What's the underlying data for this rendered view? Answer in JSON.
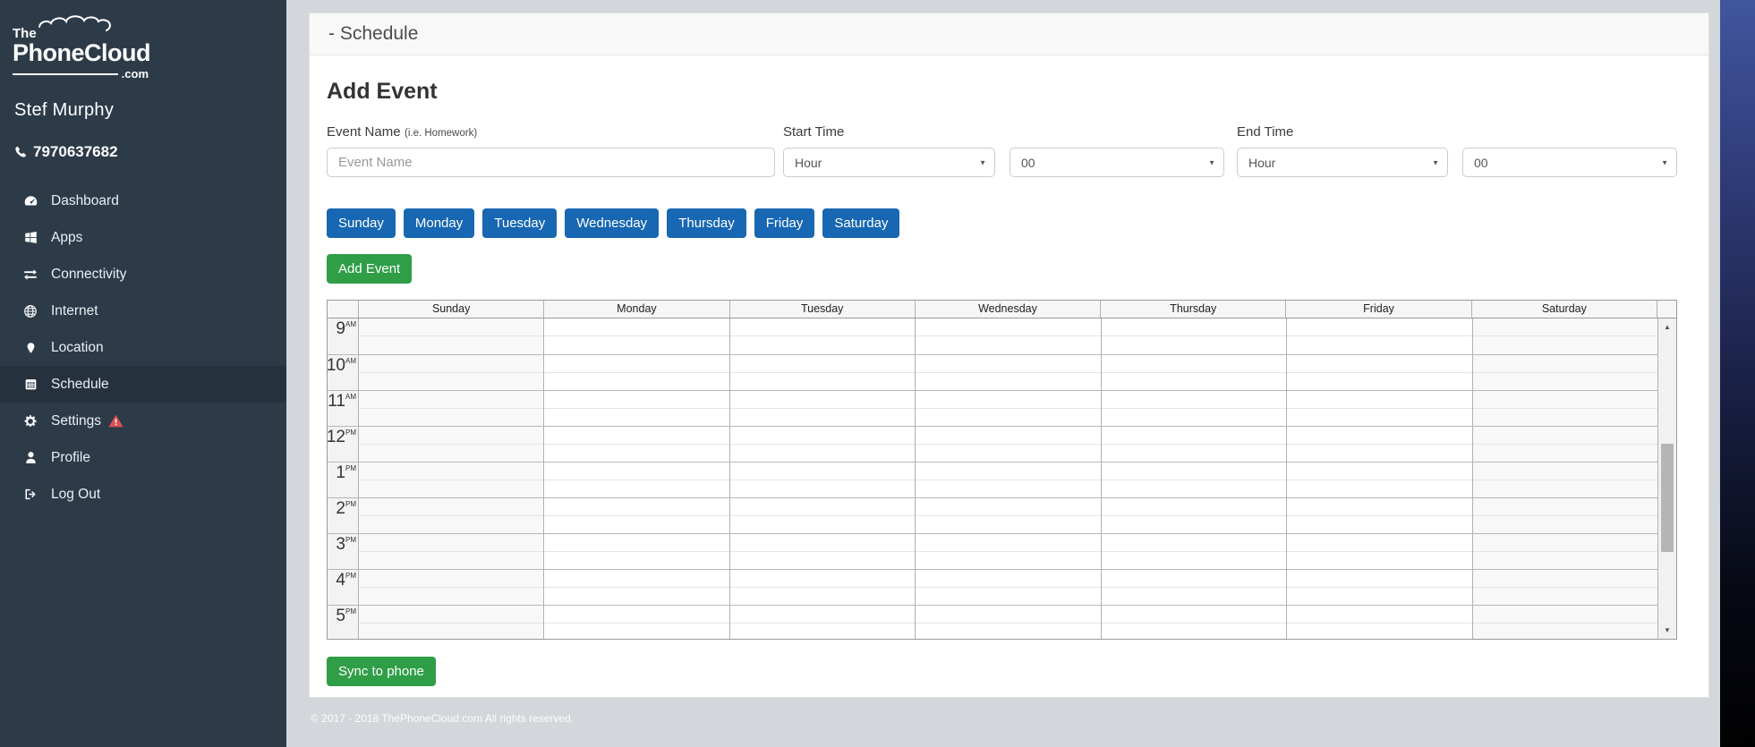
{
  "colors": {
    "sidebar_bg": "#2d3b49",
    "sidebar_active_bg": "#25323e",
    "accent_blue": "#1767b2",
    "accent_green": "#2f9e47",
    "warning_red": "#d9534f",
    "page_bg": "#d3d6da",
    "edge_top": "#41569f",
    "edge_bottom": "#010102"
  },
  "brand": {
    "line1": "The",
    "name": "PhoneCloud",
    "suffix": ".com"
  },
  "sidebar": {
    "user_name": "Stef Murphy",
    "phone": {
      "icon": "phone-icon",
      "number": "7970637682"
    },
    "items": [
      {
        "label": "Dashboard",
        "icon": "dashboard-icon",
        "active": false,
        "warning": false
      },
      {
        "label": "Apps",
        "icon": "apps-icon",
        "active": false,
        "warning": false
      },
      {
        "label": "Connectivity",
        "icon": "connectivity-icon",
        "active": false,
        "warning": false
      },
      {
        "label": "Internet",
        "icon": "internet-icon",
        "active": false,
        "warning": false
      },
      {
        "label": "Location",
        "icon": "location-icon",
        "active": false,
        "warning": false
      },
      {
        "label": "Schedule",
        "icon": "schedule-icon",
        "active": true,
        "warning": false
      },
      {
        "label": "Settings",
        "icon": "settings-icon",
        "active": false,
        "warning": true,
        "warning_icon": "warning-icon"
      },
      {
        "label": "Profile",
        "icon": "profile-icon",
        "active": false,
        "warning": false
      },
      {
        "label": "Log Out",
        "icon": "logout-icon",
        "active": false,
        "warning": false
      }
    ]
  },
  "page": {
    "title": "- Schedule"
  },
  "add_event": {
    "heading": "Add Event",
    "event_name": {
      "label": "Event Name",
      "hint": "(i.e. Homework)",
      "placeholder": "Event Name"
    },
    "start_time": {
      "label": "Start Time",
      "hour_value": "Hour",
      "minute_value": "00"
    },
    "end_time": {
      "label": "End Time",
      "hour_value": "Hour",
      "minute_value": "00"
    },
    "day_buttons": [
      "Sunday",
      "Monday",
      "Tuesday",
      "Wednesday",
      "Thursday",
      "Friday",
      "Saturday"
    ],
    "submit_label": "Add Event"
  },
  "calendar": {
    "day_headers": [
      "Sunday",
      "Monday",
      "Tuesday",
      "Wednesday",
      "Thursday",
      "Friday",
      "Saturday"
    ],
    "weekend_columns": [
      0,
      6
    ],
    "time_rows": [
      {
        "hour": "9",
        "meridiem": "AM"
      },
      {
        "hour": "10",
        "meridiem": "AM"
      },
      {
        "hour": "11",
        "meridiem": "AM"
      },
      {
        "hour": "12",
        "meridiem": "PM"
      },
      {
        "hour": "1",
        "meridiem": "PM"
      },
      {
        "hour": "2",
        "meridiem": "PM"
      },
      {
        "hour": "3",
        "meridiem": "PM"
      },
      {
        "hour": "4",
        "meridiem": "PM"
      },
      {
        "hour": "5",
        "meridiem": "PM"
      }
    ]
  },
  "sync": {
    "label": "Sync to phone"
  },
  "footer": {
    "copyright": "© 2017 - 2018 ThePhoneCloud.com All rights reserved."
  }
}
